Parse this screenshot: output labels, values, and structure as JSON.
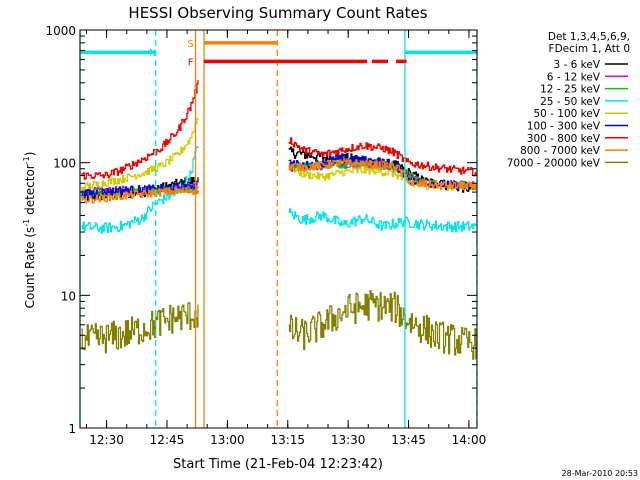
{
  "chart_data": {
    "type": "line",
    "title": "HESSI Observing Summary Count Rates",
    "xlabel": "Start Time (21-Feb-04 12:23:42)",
    "ylabel_main": "Count Rate (s",
    "ylabel_sup1": "-1",
    "ylabel_mid": " detector",
    "ylabel_sup2": "-1",
    "ylabel_end": ")",
    "yscale": "log",
    "ylim": [
      1,
      1000
    ],
    "xlim_min": [
      -0.3,
      98.3
    ],
    "x_ticks": [
      {
        "t": 6.3,
        "label": "12:30"
      },
      {
        "t": 21.3,
        "label": "12:45"
      },
      {
        "t": 36.3,
        "label": "13:00"
      },
      {
        "t": 51.3,
        "label": "13:15"
      },
      {
        "t": 66.3,
        "label": "13:30"
      },
      {
        "t": 81.3,
        "label": "13:45"
      },
      {
        "t": 96.3,
        "label": "14:00"
      }
    ],
    "y_ticks": [
      {
        "v": 1,
        "label": "1"
      },
      {
        "v": 10,
        "label": "10"
      },
      {
        "v": 100,
        "label": "100"
      },
      {
        "v": 1000,
        "label": "1000"
      }
    ],
    "legend_header": [
      "Det 1,3,4,5,6,9,",
      "FDecim 1, Att 0"
    ],
    "legend_placement": "right",
    "flags": [
      {
        "label": "N",
        "color": "#00e5e5",
        "y": 680,
        "segments": [
          [
            -0.3,
            18.5
          ],
          [
            80.4,
            98.3
          ]
        ],
        "label_t": 19.2
      },
      {
        "label": "S",
        "color": "#ff7f00",
        "y": 800,
        "segments": [
          [
            30.5,
            48.7
          ]
        ],
        "label_t": 28.4
      },
      {
        "label": "F",
        "color": "#ee0000",
        "y": 580,
        "segments": [
          [
            30.5,
            71.0
          ],
          [
            72.2,
            76.2
          ],
          [
            78.2,
            80.8
          ]
        ],
        "label_t": 28.4
      }
    ],
    "vlines": [
      {
        "t": -0.3,
        "color": "#00e5e5",
        "dash": false
      },
      {
        "t": 18.5,
        "color": "#00e5e5",
        "dash": true
      },
      {
        "t": 28.4,
        "color": "#ff7f00",
        "dash": false
      },
      {
        "t": 30.5,
        "color": "#ff7f00",
        "dash": false
      },
      {
        "t": 48.7,
        "color": "#ff7f00",
        "dash": true
      },
      {
        "t": 80.4,
        "color": "#00e5e5",
        "dash": false
      },
      {
        "t": 98.3,
        "color": "#00e5e5",
        "dash": true
      }
    ],
    "data_gap": [
      29.5,
      51.5
    ],
    "series": [
      {
        "name": "3 - 6 keV",
        "color": "#000000",
        "width": 1.2,
        "noise": 0.04,
        "points": [
          [
            0,
            55
          ],
          [
            10,
            58
          ],
          [
            18,
            62
          ],
          [
            23,
            68
          ],
          [
            27,
            72
          ],
          [
            29.2,
            75
          ],
          [
            51.5,
            120
          ],
          [
            60,
            110
          ],
          [
            70,
            105
          ],
          [
            78,
            95
          ],
          [
            85,
            72
          ],
          [
            95,
            65
          ],
          [
            98,
            63
          ]
        ]
      },
      {
        "name": "6 - 12 keV",
        "color": "#dd00dd",
        "width": 1.2,
        "noise": 0.03,
        "points": [
          [
            0,
            60
          ],
          [
            10,
            62
          ],
          [
            20,
            63
          ],
          [
            29.2,
            68
          ],
          [
            51.5,
            90
          ],
          [
            60,
            95
          ],
          [
            70,
            98
          ],
          [
            78,
            90
          ],
          [
            85,
            70
          ],
          [
            98,
            67
          ]
        ]
      },
      {
        "name": "12 - 25 keV",
        "color": "#00cc00",
        "width": 1.2,
        "noise": 0.03,
        "points": [
          [
            0,
            58
          ],
          [
            10,
            60
          ],
          [
            20,
            62
          ],
          [
            29.2,
            64
          ],
          [
            51.5,
            92
          ],
          [
            60,
            96
          ],
          [
            70,
            100
          ],
          [
            78,
            92
          ],
          [
            85,
            70
          ],
          [
            98,
            66
          ]
        ]
      },
      {
        "name": "25 - 50 keV",
        "color": "#00e5e5",
        "width": 1.2,
        "noise": 0.04,
        "points": [
          [
            0,
            33
          ],
          [
            5,
            32
          ],
          [
            10,
            33
          ],
          [
            15,
            38
          ],
          [
            18,
            48
          ],
          [
            21,
            55
          ],
          [
            24,
            60
          ],
          [
            27,
            80
          ],
          [
            29.2,
            150
          ],
          [
            51.5,
            42
          ],
          [
            55,
            37
          ],
          [
            60,
            40
          ],
          [
            65,
            34
          ],
          [
            70,
            38
          ],
          [
            75,
            33
          ],
          [
            80,
            36
          ],
          [
            85,
            34
          ],
          [
            92,
            33
          ],
          [
            98,
            33
          ]
        ]
      },
      {
        "name": "50 - 100 keV",
        "color": "#cccc00",
        "width": 1.2,
        "noise": 0.03,
        "points": [
          [
            0,
            65
          ],
          [
            10,
            75
          ],
          [
            16,
            85
          ],
          [
            20,
            95
          ],
          [
            24,
            115
          ],
          [
            27,
            150
          ],
          [
            29.2,
            230
          ],
          [
            51.5,
            95
          ],
          [
            55,
            82
          ],
          [
            60,
            78
          ],
          [
            65,
            85
          ],
          [
            72,
            88
          ],
          [
            78,
            82
          ],
          [
            82,
            68
          ],
          [
            92,
            66
          ],
          [
            98,
            66
          ]
        ]
      },
      {
        "name": "100 - 300 keV",
        "color": "#0000ee",
        "width": 1.2,
        "noise": 0.03,
        "points": [
          [
            0,
            58
          ],
          [
            10,
            62
          ],
          [
            20,
            64
          ],
          [
            29.2,
            68
          ],
          [
            51.5,
            100
          ],
          [
            55,
            95
          ],
          [
            60,
            100
          ],
          [
            65,
            108
          ],
          [
            70,
            105
          ],
          [
            78,
            96
          ],
          [
            82,
            72
          ],
          [
            92,
            68
          ],
          [
            98,
            65
          ]
        ]
      },
      {
        "name": "300 - 800 keV",
        "color": "#ee0000",
        "width": 1.3,
        "noise": 0.03,
        "points": [
          [
            0,
            80
          ],
          [
            6,
            80
          ],
          [
            10,
            88
          ],
          [
            15,
            105
          ],
          [
            20,
            130
          ],
          [
            24,
            175
          ],
          [
            27,
            260
          ],
          [
            29.2,
            410
          ],
          [
            51.5,
            150
          ],
          [
            55,
            125
          ],
          [
            60,
            115
          ],
          [
            65,
            125
          ],
          [
            70,
            135
          ],
          [
            75,
            128
          ],
          [
            78,
            118
          ],
          [
            81,
            100
          ],
          [
            88,
            92
          ],
          [
            93,
            88
          ],
          [
            98,
            85
          ]
        ]
      },
      {
        "name": "800 - 7000 keV",
        "color": "#ff7f00",
        "width": 1.3,
        "noise": 0.03,
        "points": [
          [
            0,
            52
          ],
          [
            10,
            56
          ],
          [
            20,
            60
          ],
          [
            29.2,
            62
          ],
          [
            51.5,
            95
          ],
          [
            55,
            92
          ],
          [
            60,
            96
          ],
          [
            65,
            100
          ],
          [
            70,
            98
          ],
          [
            78,
            94
          ],
          [
            82,
            70
          ],
          [
            92,
            67
          ],
          [
            98,
            66
          ]
        ]
      },
      {
        "name": "7000 - 20000 keV",
        "color": "#808000",
        "width": 1.2,
        "noise": 0.12,
        "points": [
          [
            0,
            4.5
          ],
          [
            10,
            5.0
          ],
          [
            18,
            6.0
          ],
          [
            23,
            6.8
          ],
          [
            29.2,
            7.2
          ],
          [
            51.5,
            5.5
          ],
          [
            55,
            5.0
          ],
          [
            60,
            6.0
          ],
          [
            66,
            7.8
          ],
          [
            72,
            8.5
          ],
          [
            78,
            8.0
          ],
          [
            81,
            6.5
          ],
          [
            88,
            5.0
          ],
          [
            95,
            4.4
          ],
          [
            98,
            4.3
          ]
        ]
      }
    ]
  },
  "timestamp": "28-Mar-2010 20:53"
}
